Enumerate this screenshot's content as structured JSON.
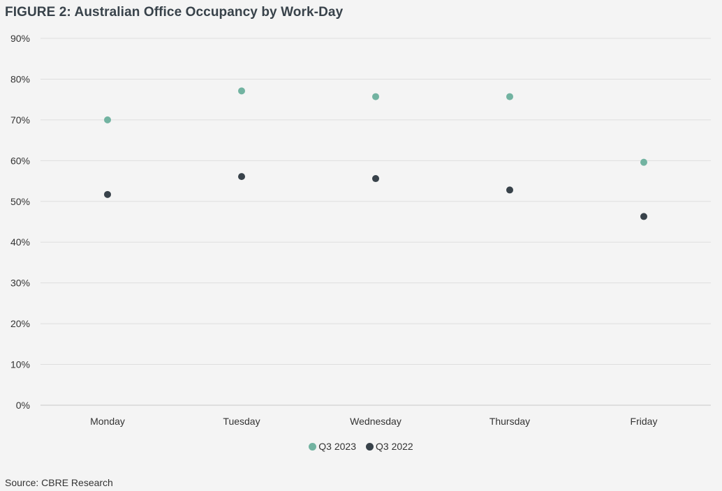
{
  "title": "FIGURE 2: Australian Office Occupancy by Work-Day",
  "source": "Source: CBRE Research",
  "chart_data": {
    "type": "scatter",
    "categories": [
      "Monday",
      "Tuesday",
      "Wednesday",
      "Thursday",
      "Friday"
    ],
    "series": [
      {
        "name": "Q3 2023",
        "color": "#72b3a1",
        "values": [
          70,
          77.1,
          75.7,
          75.7,
          59.6
        ]
      },
      {
        "name": "Q3 2022",
        "color": "#38424a",
        "values": [
          51.7,
          56.1,
          55.6,
          52.8,
          46.3
        ]
      }
    ],
    "ylim": [
      0,
      90
    ],
    "ytick_step": 10,
    "ytick_labels": [
      "0%",
      "10%",
      "20%",
      "30%",
      "40%",
      "50%",
      "60%",
      "70%",
      "80%",
      "90%"
    ],
    "grid": true,
    "legend_position": "bottom-center",
    "xlabel": "",
    "ylabel": ""
  }
}
